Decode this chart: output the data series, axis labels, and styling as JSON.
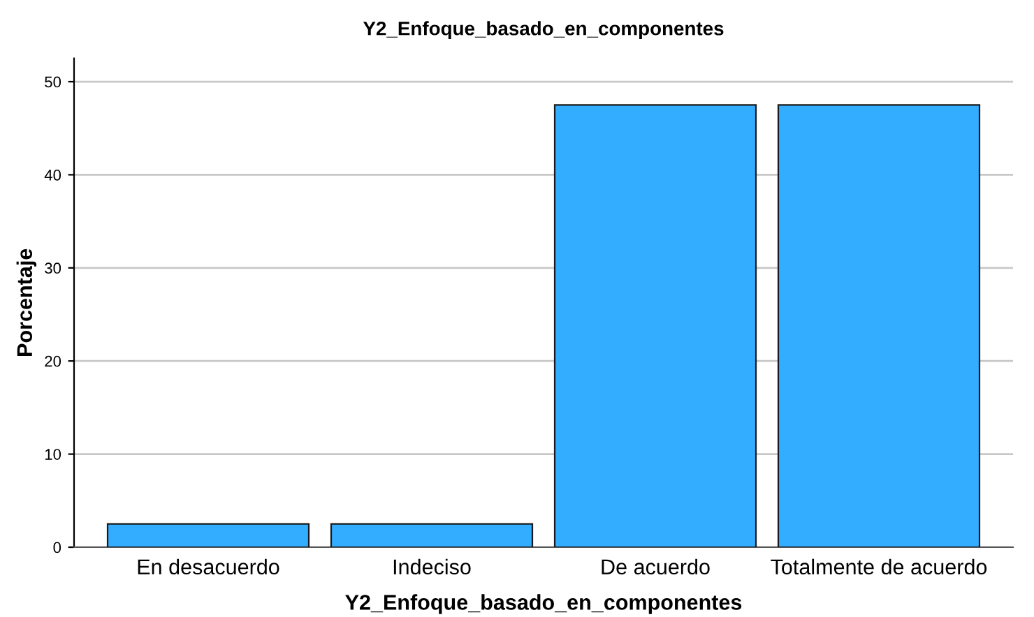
{
  "chart_data": {
    "type": "bar",
    "title": "Y2_Enfoque_basado_en_componentes",
    "xlabel": "Y2_Enfoque_basado_en_componentes",
    "ylabel": "Porcentaje",
    "categories": [
      "En desacuerdo",
      "Indeciso",
      "De acuerdo",
      "Totalmente de acuerdo"
    ],
    "values": [
      2.5,
      2.5,
      47.5,
      47.5
    ],
    "color": "#33adff",
    "ylim": [
      0,
      52.5
    ],
    "yticks": [
      0,
      10,
      20,
      30,
      40,
      50
    ],
    "grid": "y",
    "legend": false
  }
}
